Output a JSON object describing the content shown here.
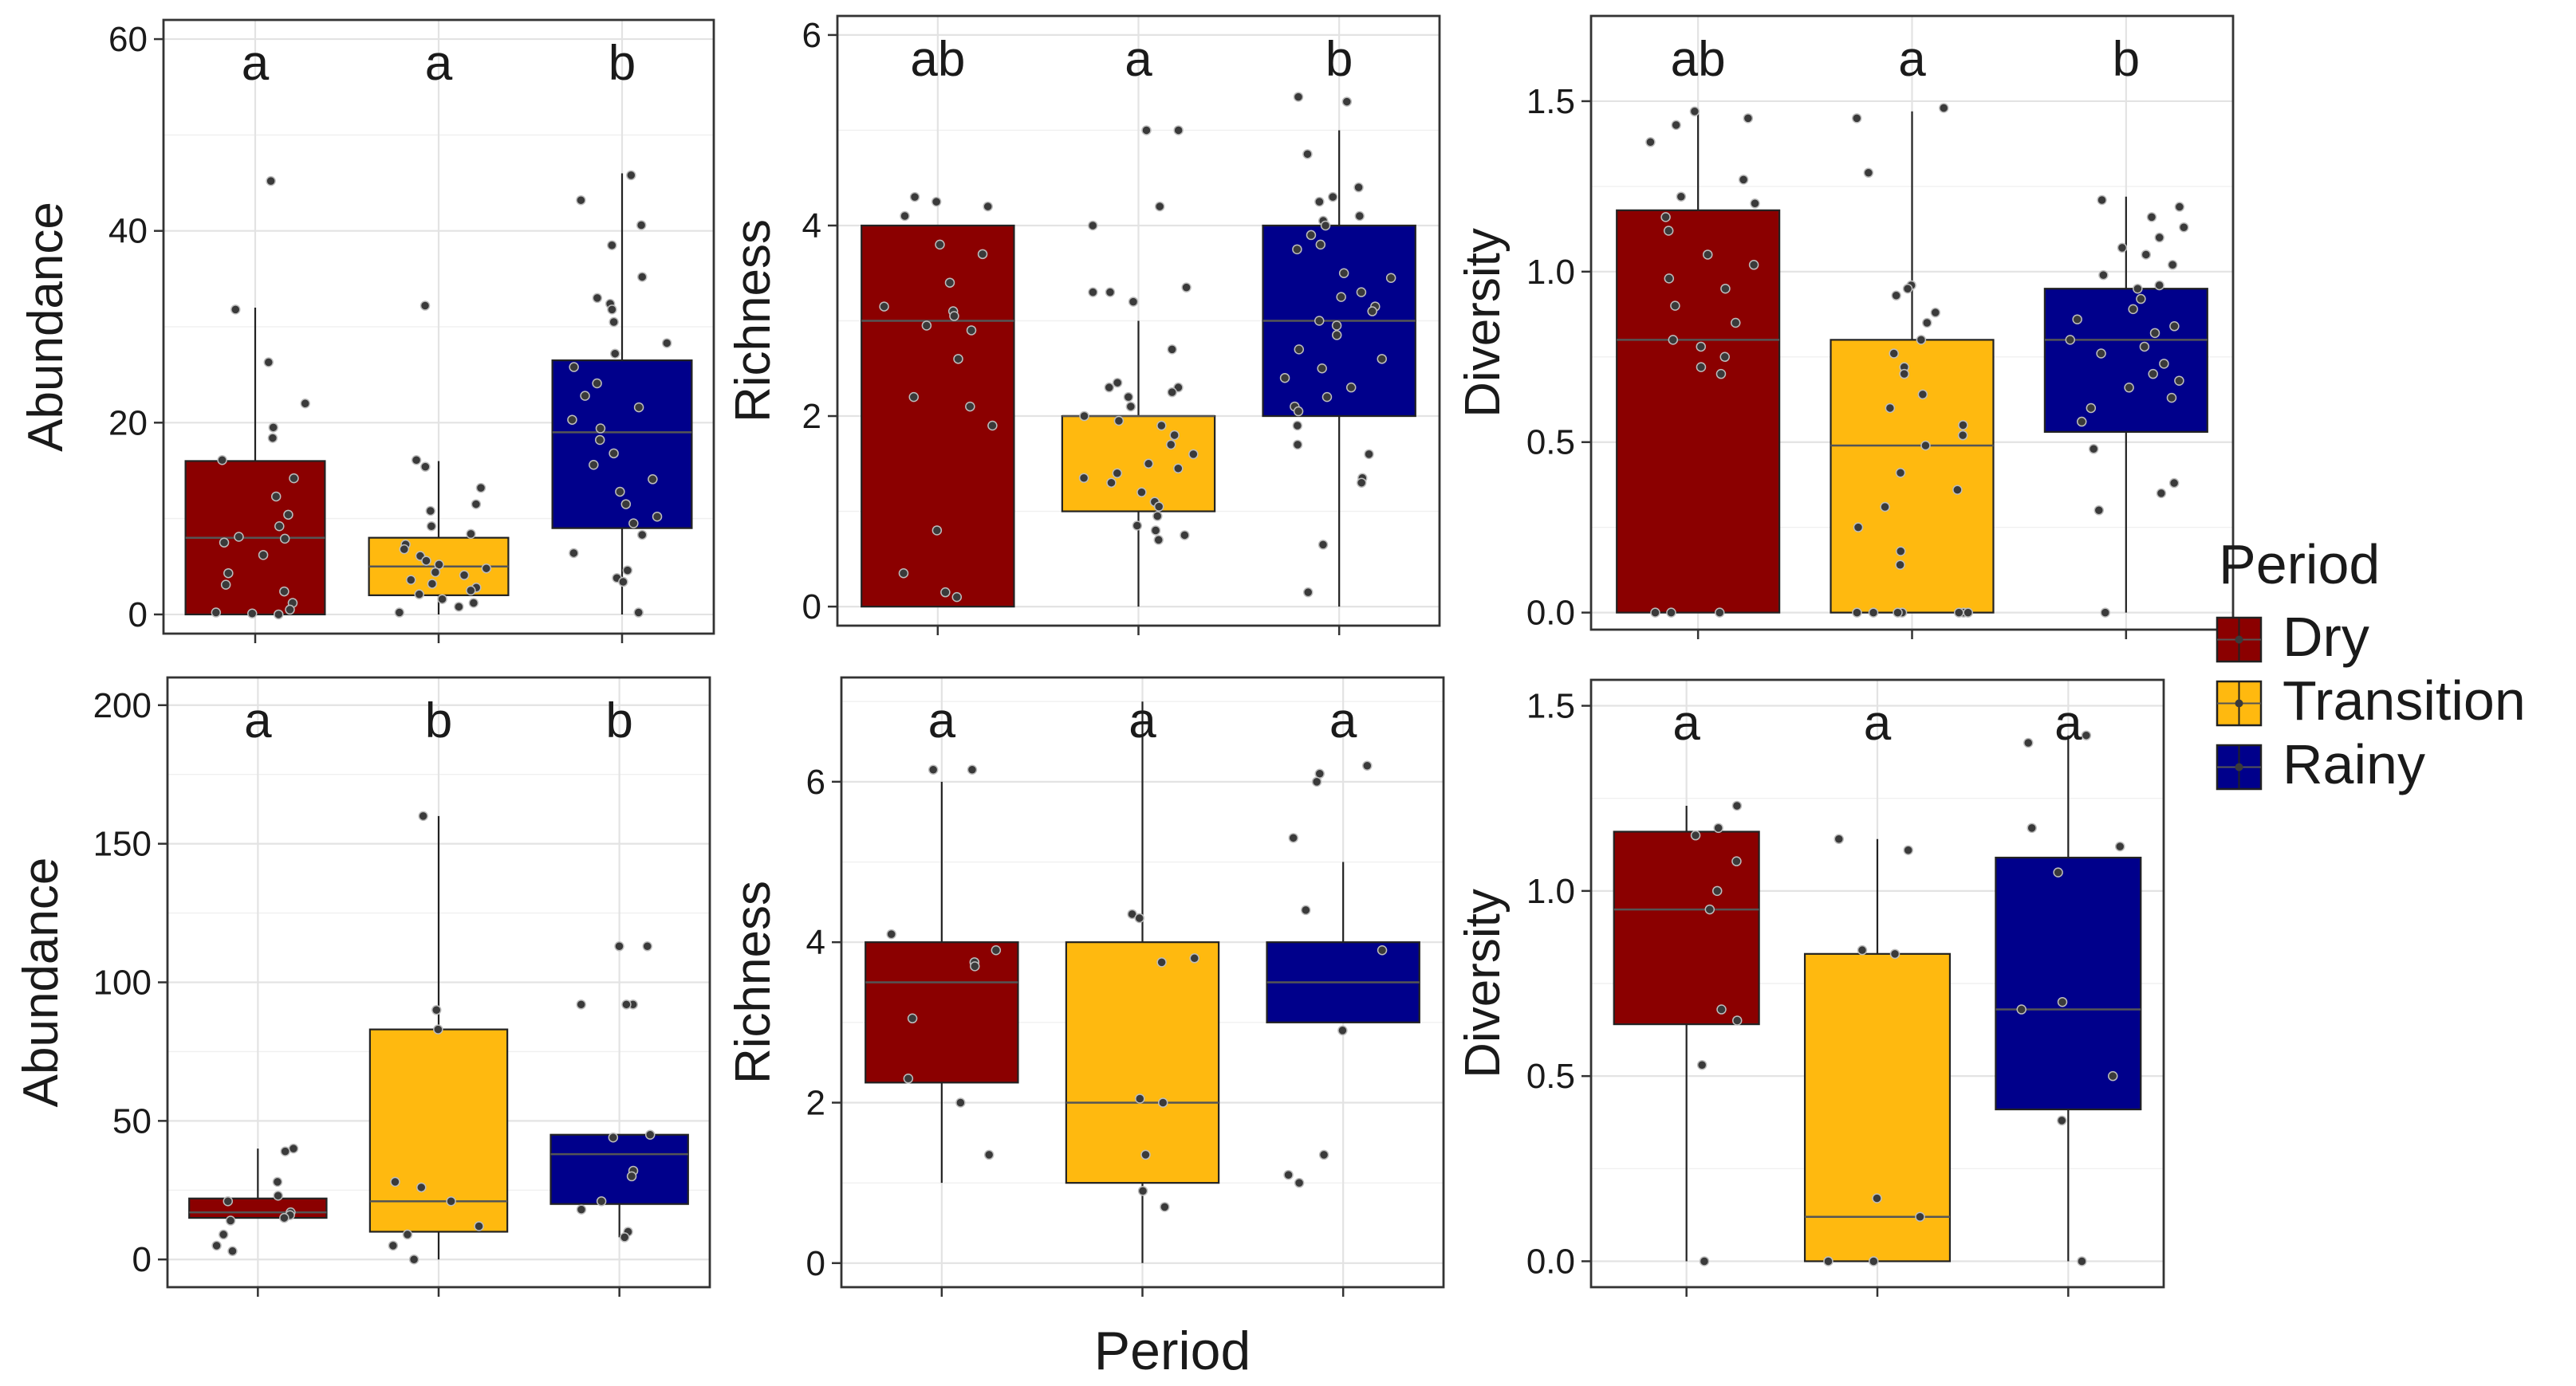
{
  "figure": {
    "xlabel": "Period",
    "legend": {
      "title": "Period",
      "position": "right",
      "items": [
        {
          "label": "Dry",
          "color": "#8B0000"
        },
        {
          "label": "Transition",
          "color": "#FFB90F"
        },
        {
          "label": "Rainy",
          "color": "#00008B"
        }
      ]
    }
  },
  "chart_data": [
    {
      "type": "box",
      "title": "",
      "xlabel": "",
      "ylabel": "Abundance",
      "ylim": [
        -2,
        62
      ],
      "yticks": [
        0,
        20,
        40,
        60
      ],
      "letters": [
        "a",
        "a",
        "b"
      ],
      "groups": [
        {
          "name": "Dry",
          "color": "#8B0000",
          "min": 0,
          "q1": 0,
          "median": 8,
          "q3": 16,
          "max": 32,
          "points": [
            45.2,
            31.8,
            26.3,
            22,
            19.5,
            18.4,
            16.1,
            14.2,
            12.3,
            10.4,
            9.2,
            8.1,
            7.9,
            7.5,
            6.2,
            4.3,
            3.1,
            2.4,
            1.2,
            0.5,
            0.2,
            0.1,
            0
          ]
        },
        {
          "name": "Transition",
          "color": "#FFB90F",
          "min": 0,
          "q1": 2,
          "median": 5,
          "q3": 8,
          "max": 16,
          "points": [
            32.2,
            16.1,
            15.4,
            13.2,
            11.5,
            10.8,
            9.2,
            8.4,
            7.3,
            6.8,
            6.1,
            5.6,
            5.2,
            4.8,
            4.4,
            4.1,
            3.6,
            3.2,
            2.8,
            2.5,
            2.1,
            1.6,
            1.2,
            0.8,
            0.2
          ]
        },
        {
          "name": "Rainy",
          "color": "#00008B",
          "min": 0,
          "q1": 9,
          "median": 19,
          "q3": 26.5,
          "max": 46,
          "points": [
            45.8,
            43.2,
            40.6,
            38.5,
            35.2,
            33,
            32.4,
            31.8,
            30.5,
            28.3,
            27.2,
            25.8,
            24.1,
            22.8,
            21.6,
            20.3,
            19.4,
            18.2,
            16.8,
            15.6,
            14.1,
            12.8,
            11.5,
            10.2,
            9.5,
            8.3,
            6.4,
            4.6,
            3.8,
            3.4,
            0.2
          ]
        }
      ]
    },
    {
      "type": "box",
      "title": "",
      "xlabel": "",
      "ylabel": "Richness",
      "ylim": [
        -0.2,
        6.2
      ],
      "yticks": [
        0,
        2,
        4,
        6
      ],
      "letters": [
        "ab",
        "a",
        "b"
      ],
      "groups": [
        {
          "name": "Dry",
          "color": "#8B0000",
          "min": 0,
          "q1": 0,
          "median": 3,
          "q3": 4,
          "max": 4,
          "points": [
            4.3,
            4.25,
            4.2,
            4.1,
            3.8,
            3.7,
            3.4,
            3.15,
            3.1,
            3.05,
            2.95,
            2.9,
            2.6,
            2.2,
            2.1,
            1.9,
            0.8,
            0.35,
            0.15,
            0.1
          ]
        },
        {
          "name": "Transition",
          "color": "#FFB90F",
          "min": 0,
          "q1": 1,
          "median": 2,
          "q3": 2,
          "max": 3,
          "points": [
            5,
            5,
            4.2,
            4,
            3.35,
            3.3,
            3.3,
            3.2,
            2.7,
            2.35,
            2.3,
            2.3,
            2.25,
            2.2,
            2.1,
            2,
            1.95,
            1.9,
            1.8,
            1.7,
            1.6,
            1.5,
            1.45,
            1.4,
            1.35,
            1.3,
            1.2,
            1.1,
            1.05,
            0.95,
            0.85,
            0.8,
            0.75,
            0.7
          ]
        },
        {
          "name": "Rainy",
          "color": "#00008B",
          "min": 0,
          "q1": 2,
          "median": 3,
          "q3": 4,
          "max": 5,
          "points": [
            5.35,
            5.3,
            4.75,
            4.4,
            4.3,
            4.25,
            4.1,
            4.05,
            4,
            3.9,
            3.8,
            3.75,
            3.5,
            3.45,
            3.3,
            3.25,
            3.15,
            3.1,
            3,
            2.95,
            2.85,
            2.7,
            2.6,
            2.5,
            2.4,
            2.3,
            2.2,
            2.1,
            2.05,
            1.9,
            1.7,
            1.6,
            1.35,
            1.3,
            0.65,
            0.15
          ]
        }
      ]
    },
    {
      "type": "box",
      "title": "",
      "xlabel": "",
      "ylabel": "Diversity",
      "ylim": [
        -0.05,
        1.75
      ],
      "yticks": [
        0.0,
        0.5,
        1.0,
        1.5
      ],
      "letters": [
        "ab",
        "a",
        "b"
      ],
      "groups": [
        {
          "name": "Dry",
          "color": "#8B0000",
          "min": 0,
          "q1": 0,
          "median": 0.8,
          "q3": 1.18,
          "max": 1.47,
          "points": [
            1.47,
            1.45,
            1.43,
            1.38,
            1.27,
            1.22,
            1.2,
            1.16,
            1.12,
            1.05,
            1.02,
            0.98,
            0.95,
            0.9,
            0.85,
            0.8,
            0.78,
            0.75,
            0.72,
            0.7,
            0,
            0,
            0
          ]
        },
        {
          "name": "Transition",
          "color": "#FFB90F",
          "min": 0,
          "q1": 0,
          "median": 0.49,
          "q3": 0.8,
          "max": 1.47,
          "points": [
            1.48,
            1.45,
            1.29,
            0.96,
            0.95,
            0.93,
            0.88,
            0.85,
            0.8,
            0.76,
            0.72,
            0.7,
            0.64,
            0.6,
            0.55,
            0.52,
            0.49,
            0.41,
            0.36,
            0.31,
            0.25,
            0.18,
            0.14,
            0,
            0,
            0,
            0,
            0,
            0,
            0
          ]
        },
        {
          "name": "Rainy",
          "color": "#00008B",
          "min": 0,
          "q1": 0.53,
          "median": 0.8,
          "q3": 0.95,
          "max": 1.22,
          "points": [
            1.21,
            1.19,
            1.16,
            1.13,
            1.1,
            1.07,
            1.05,
            1.02,
            0.99,
            0.96,
            0.95,
            0.92,
            0.89,
            0.86,
            0.84,
            0.82,
            0.8,
            0.78,
            0.76,
            0.73,
            0.7,
            0.68,
            0.66,
            0.63,
            0.6,
            0.56,
            0.48,
            0.38,
            0.35,
            0.3,
            0
          ]
        }
      ]
    },
    {
      "type": "box",
      "title": "",
      "xlabel": "",
      "ylabel": "Abundance",
      "ylim": [
        -10,
        210
      ],
      "yticks": [
        0,
        50,
        100,
        150,
        200
      ],
      "letters": [
        "a",
        "b",
        "b"
      ],
      "groups": [
        {
          "name": "Dry",
          "color": "#8B0000",
          "min": 15,
          "q1": 15,
          "median": 17,
          "q3": 22,
          "max": 40,
          "points": [
            40,
            39,
            28,
            23,
            21,
            17,
            16,
            15,
            14,
            9,
            5,
            3
          ]
        },
        {
          "name": "Transition",
          "color": "#FFB90F",
          "min": 0,
          "q1": 10,
          "median": 21,
          "q3": 83,
          "max": 160,
          "points": [
            160,
            90,
            83,
            28,
            26,
            21,
            12,
            9,
            5,
            0
          ]
        },
        {
          "name": "Rainy",
          "color": "#00008B",
          "min": 8,
          "q1": 20,
          "median": 38,
          "q3": 45,
          "max": 45,
          "points": [
            113,
            113,
            92,
            92,
            92,
            45,
            44,
            32,
            30,
            21,
            18,
            10,
            8
          ]
        }
      ]
    },
    {
      "type": "box",
      "title": "",
      "xlabel": "",
      "ylabel": "Richness",
      "ylim": [
        -0.3,
        7.3
      ],
      "yticks": [
        0,
        2,
        4,
        6
      ],
      "letters": [
        "a",
        "a",
        "a"
      ],
      "groups": [
        {
          "name": "Dry",
          "color": "#8B0000",
          "min": 1,
          "q1": 2.25,
          "median": 3.5,
          "q3": 4,
          "max": 6,
          "points": [
            6.15,
            6.15,
            4.1,
            3.9,
            3.75,
            3.7,
            3.05,
            2.3,
            2,
            1.35
          ]
        },
        {
          "name": "Transition",
          "color": "#FFB90F",
          "min": 0,
          "q1": 1,
          "median": 2,
          "q3": 4,
          "max": 7,
          "points": [
            4.35,
            4.3,
            3.8,
            3.75,
            2.05,
            2,
            1.35,
            0.9,
            0.7
          ]
        },
        {
          "name": "Rainy",
          "color": "#00008B",
          "min": 3,
          "q1": 3,
          "median": 3.5,
          "q3": 4,
          "max": 5,
          "points": [
            6.2,
            6.1,
            6,
            5.3,
            4.4,
            3.9,
            2.9,
            1.35,
            1.1,
            1
          ]
        }
      ]
    },
    {
      "type": "box",
      "title": "",
      "xlabel": "",
      "ylabel": "Diversity",
      "ylim": [
        -0.07,
        1.57
      ],
      "yticks": [
        0.0,
        0.5,
        1.0,
        1.5
      ],
      "letters": [
        "a",
        "a",
        "a"
      ],
      "groups": [
        {
          "name": "Dry",
          "color": "#8B0000",
          "min": 0,
          "q1": 0.64,
          "median": 0.95,
          "q3": 1.16,
          "max": 1.23,
          "points": [
            1.23,
            1.17,
            1.15,
            1.08,
            1,
            0.95,
            0.68,
            0.65,
            0.53,
            0
          ]
        },
        {
          "name": "Transition",
          "color": "#FFB90F",
          "min": 0,
          "q1": 0,
          "median": 0.12,
          "q3": 0.83,
          "max": 1.14,
          "points": [
            1.14,
            1.11,
            0.84,
            0.83,
            0.17,
            0.12,
            0,
            0
          ]
        },
        {
          "name": "Rainy",
          "color": "#00008B",
          "min": 0,
          "q1": 0.41,
          "median": 0.68,
          "q3": 1.09,
          "max": 1.42,
          "points": [
            1.42,
            1.4,
            1.17,
            1.12,
            1.05,
            0.7,
            0.68,
            0.5,
            0.38,
            0
          ]
        }
      ]
    }
  ]
}
